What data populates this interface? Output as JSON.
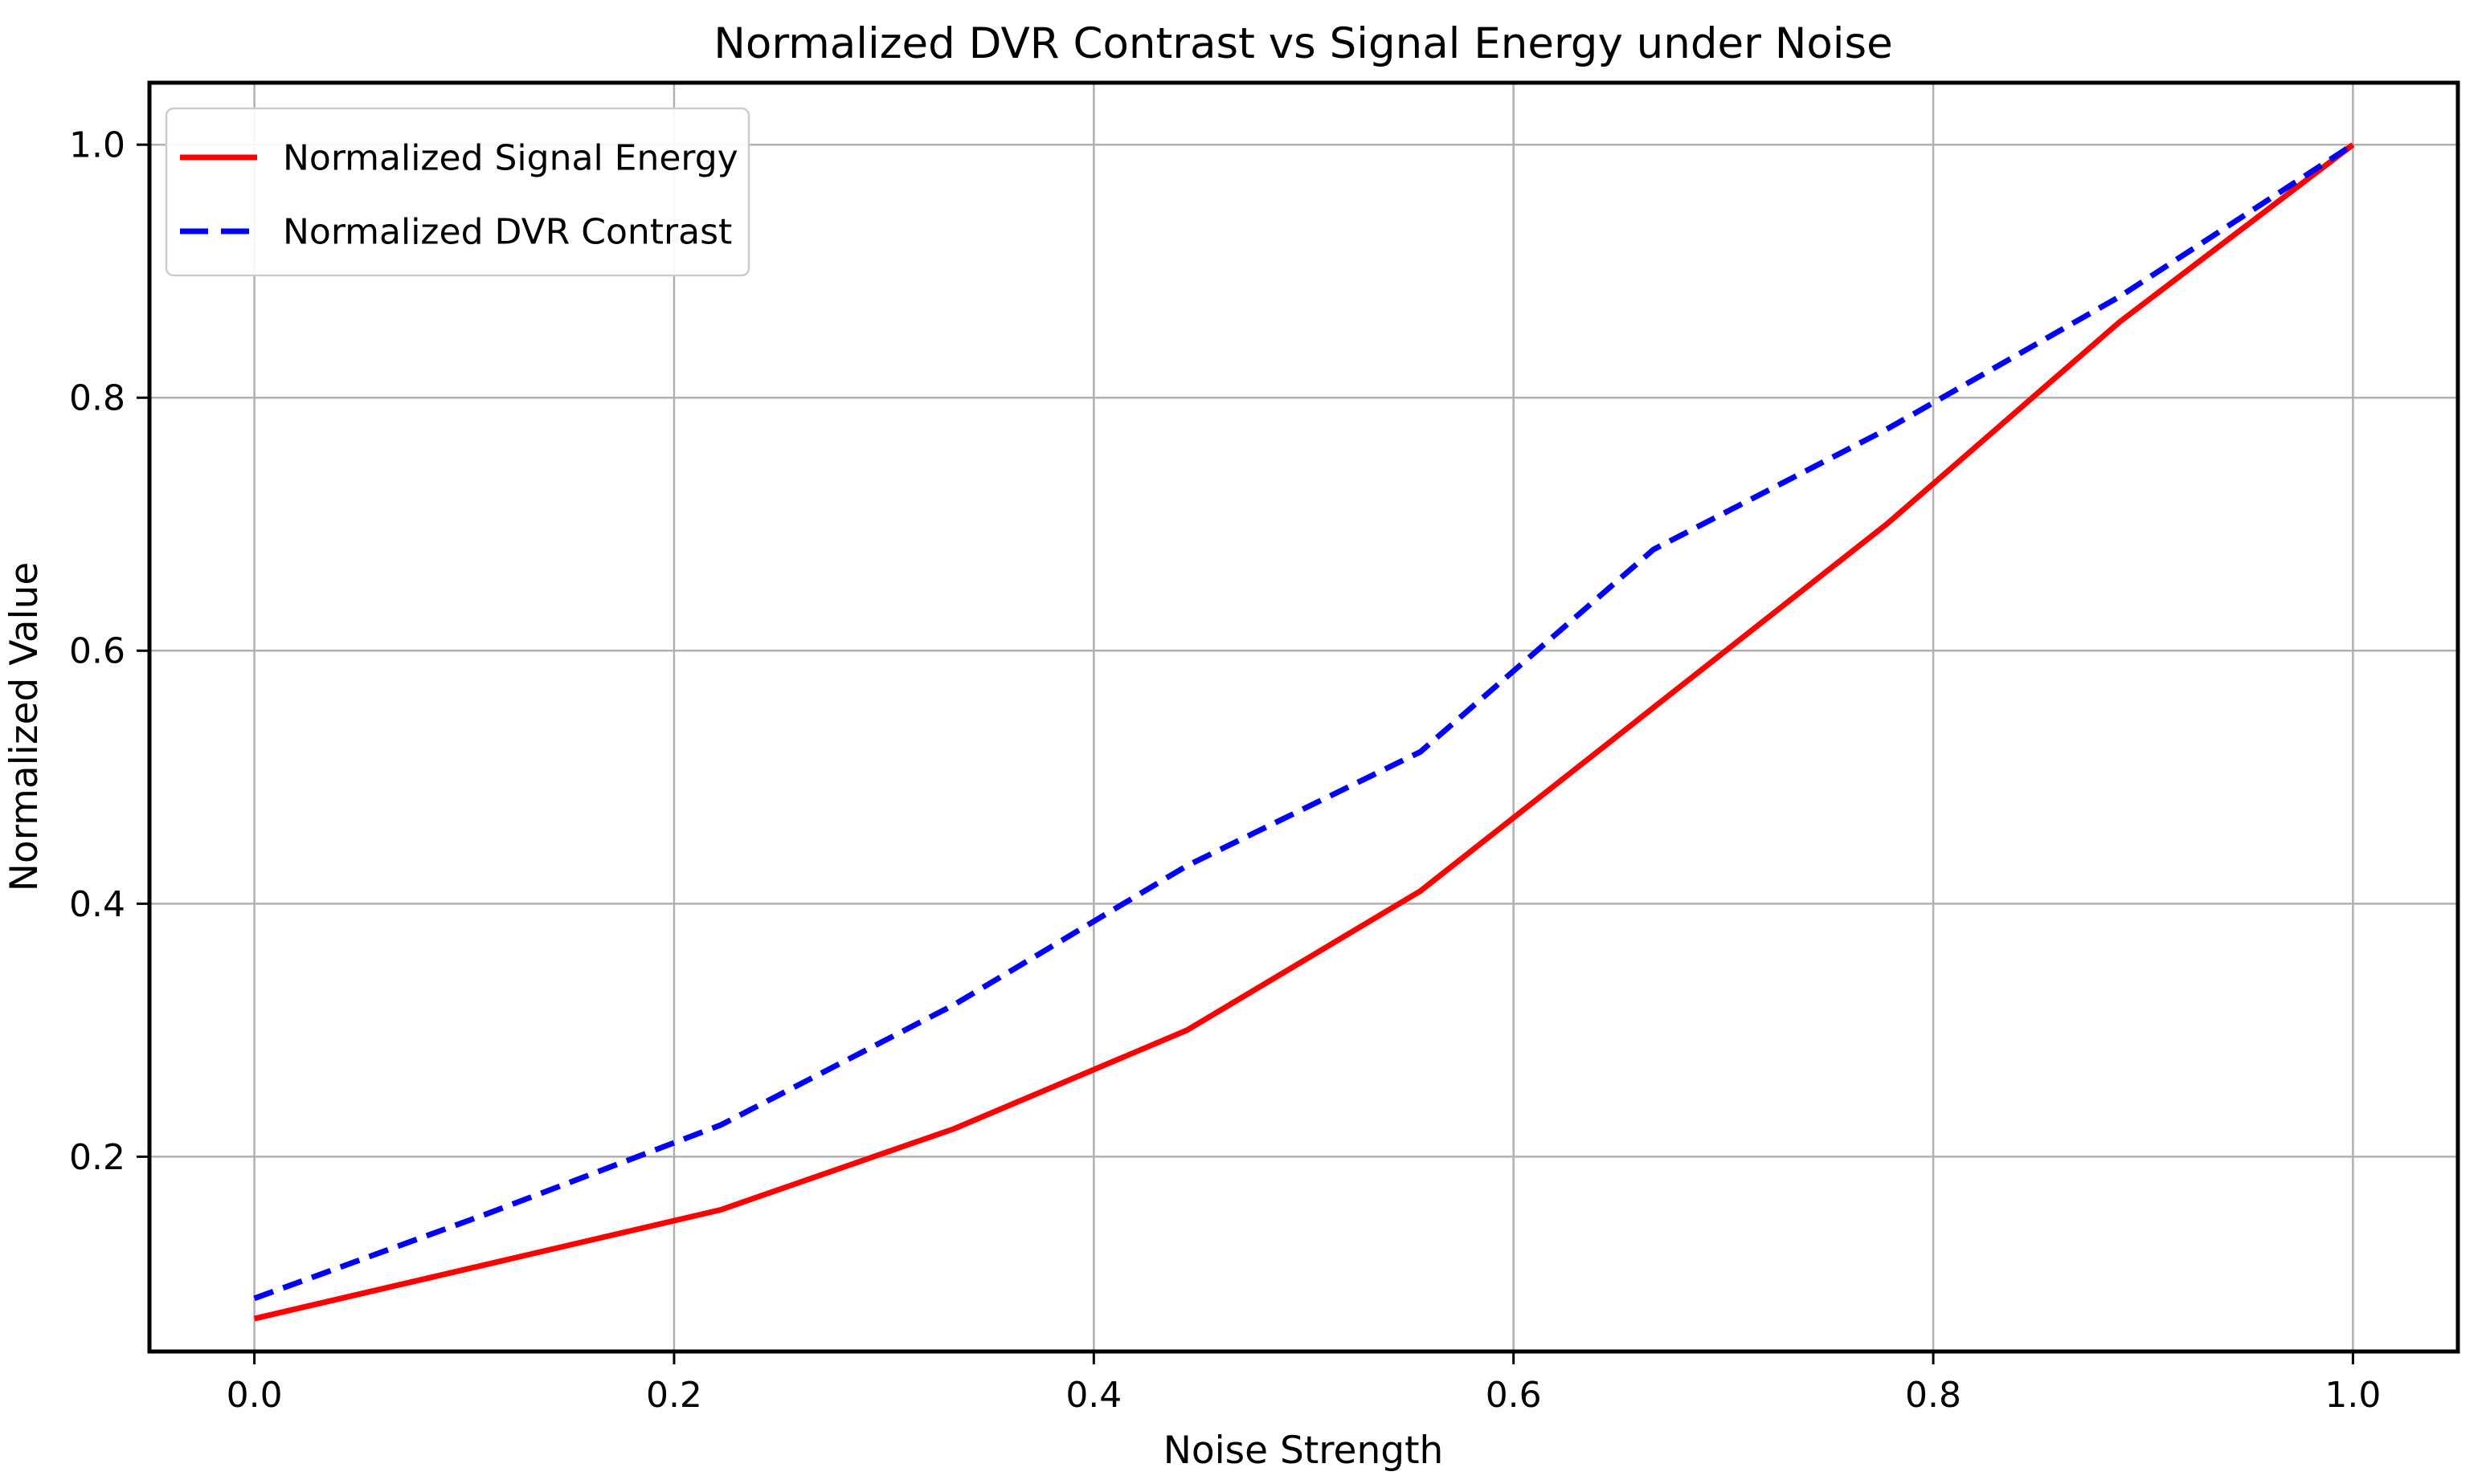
{
  "chart_data": {
    "type": "line",
    "title": "Normalized DVR Contrast vs Signal Energy under Noise",
    "xlabel": "Noise Strength",
    "ylabel": "Normalized Value",
    "x": [
      0.0,
      0.1111,
      0.2222,
      0.3333,
      0.4444,
      0.5556,
      0.6667,
      0.7778,
      0.8889,
      1.0
    ],
    "series": [
      {
        "name": "Normalized Signal Energy",
        "color": "#FF0000",
        "style": "solid",
        "values": [
          0.072,
          0.115,
          0.158,
          0.222,
          0.3,
          0.41,
          0.555,
          0.7,
          0.86,
          1.0
        ]
      },
      {
        "name": "Normalized DVR Contrast",
        "color": "#0000FF",
        "style": "dashed",
        "values": [
          0.088,
          0.155,
          0.225,
          0.32,
          0.43,
          0.52,
          0.68,
          0.775,
          0.88,
          1.0
        ]
      }
    ],
    "xticks": [
      0.0,
      0.2,
      0.4,
      0.6,
      0.8,
      1.0
    ],
    "xtick_labels": [
      "0.0",
      "0.2",
      "0.4",
      "0.6",
      "0.8",
      "1.0"
    ],
    "yticks": [
      0.2,
      0.4,
      0.6,
      0.8,
      1.0
    ],
    "ytick_labels": [
      "0.2",
      "0.4",
      "0.6",
      "0.8",
      "1.0"
    ],
    "xlim": [
      -0.05,
      1.05
    ],
    "ylim": [
      0.046,
      1.049
    ],
    "grid": true,
    "grid_color": "#b0b0b0",
    "axis_color": "#000000",
    "text_color": "#000000",
    "background": "#ffffff",
    "legend_position": "upper left"
  }
}
